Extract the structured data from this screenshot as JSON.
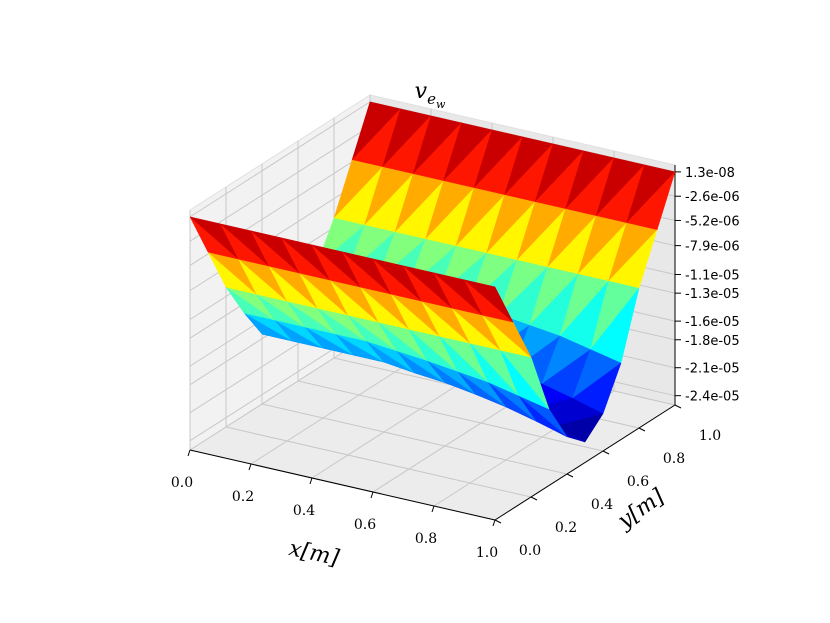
{
  "chart_data": {
    "type": "surface",
    "title": [
      "v",
      "e",
      "w"
    ],
    "xlabel": "x[m]",
    "ylabel": "y[m]",
    "colormap": "jet",
    "grid": true,
    "x": [
      0,
      0.1,
      0.2,
      0.3,
      0.4,
      0.5,
      0.6,
      0.7,
      0.8,
      0.9,
      1
    ],
    "y": [
      0,
      0.1,
      0.2,
      0.3,
      0.4,
      0.5,
      0.6,
      0.7,
      0.8,
      0.9,
      1
    ],
    "z": [
      [
        1.3e-08,
        1.3e-08,
        1.3e-08,
        1.3e-08,
        1.3e-08,
        1.3e-08,
        1.3e-08,
        1.3e-08,
        1.3e-08,
        1.3e-08,
        1.3e-08
      ],
      [
        -5e-06,
        -5e-06,
        -5e-06,
        -5e-06,
        -5e-06,
        -5e-06,
        -5e-06,
        -5e-06,
        -5e-06,
        -5e-06,
        -5e-06
      ],
      [
        -1e-05,
        -1e-05,
        -1e-05,
        -1e-05,
        -1e-05,
        -1e-05,
        -1e-05,
        -1e-05,
        -1e-05,
        -1e-05,
        -1e-05
      ],
      [
        -1.4e-05,
        -1.4e-05,
        -1.4e-05,
        -1.4e-05,
        -1.4e-05,
        -1.43e-05,
        -1.46e-05,
        -1.5e-05,
        -1.54e-05,
        -1.61e-05,
        -1.68e-05
      ],
      [
        -1.75e-05,
        -1.75e-05,
        -1.75e-05,
        -1.75e-05,
        -1.75e-05,
        -1.79e-05,
        -1.82e-05,
        -1.87e-05,
        -1.93e-05,
        -2.01e-05,
        -2.1e-05
      ],
      [
        -1.9e-05,
        -1.9e-05,
        -1.9e-05,
        -1.9e-05,
        -1.9e-05,
        -1.94e-05,
        -1.98e-05,
        -2.03e-05,
        -2.09e-05,
        -2.19e-05,
        -2.28e-05
      ],
      [
        -1.75e-05,
        -1.75e-05,
        -1.75e-05,
        -1.75e-05,
        -1.75e-05,
        -1.79e-05,
        -1.82e-05,
        -1.87e-05,
        -1.93e-05,
        -2.01e-05,
        -2.1e-05
      ],
      [
        -1.4e-05,
        -1.4e-05,
        -1.4e-05,
        -1.4e-05,
        -1.4e-05,
        -1.43e-05,
        -1.46e-05,
        -1.5e-05,
        -1.54e-05,
        -1.61e-05,
        -1.68e-05
      ],
      [
        -1e-05,
        -1e-05,
        -1e-05,
        -1e-05,
        -1e-05,
        -1e-05,
        -1e-05,
        -1e-05,
        -1e-05,
        -1e-05,
        -1e-05
      ],
      [
        -5e-06,
        -5e-06,
        -5e-06,
        -5e-06,
        -5e-06,
        -5e-06,
        -5e-06,
        -5e-06,
        -5e-06,
        -5e-06,
        -5e-06
      ],
      [
        1.3e-08,
        1.3e-08,
        1.3e-08,
        1.3e-08,
        1.3e-08,
        1.3e-08,
        1.3e-08,
        1.3e-08,
        1.3e-08,
        1.3e-08,
        1.3e-08
      ]
    ],
    "xlim": [
      0,
      1
    ],
    "ylim": [
      0,
      1
    ],
    "zlim": [
      -2.5e-05,
      7.5e-07
    ],
    "xticks": [
      {
        "value": 0,
        "label": "0.0"
      },
      0.2,
      0.4,
      0.6,
      0.8,
      {
        "value": 1,
        "label": "1.0"
      }
    ],
    "yticks": [
      {
        "value": 0,
        "label": "0.0"
      },
      0.2,
      0.4,
      0.6,
      0.8,
      {
        "value": 1,
        "label": "1.0"
      }
    ],
    "zticks": [
      {
        "value": 1.3e-08,
        "label": "1.3e-08"
      },
      {
        "value": -2.6e-06,
        "label": "-2.6e-06"
      },
      {
        "value": -5.2e-06,
        "label": "-5.2e-06"
      },
      {
        "value": -7.9e-06,
        "label": "-7.9e-06"
      },
      {
        "value": -1.1e-05,
        "label": "-1.1e-05"
      },
      {
        "value": -1.3e-05,
        "label": "-1.3e-05"
      },
      {
        "value": -1.6e-05,
        "label": "-1.6e-05"
      },
      {
        "value": -1.8e-05,
        "label": "-1.8e-05"
      },
      {
        "value": -2.1e-05,
        "label": "-2.1e-05"
      },
      {
        "value": -2.4e-05,
        "label": "-2.4e-05"
      }
    ]
  }
}
